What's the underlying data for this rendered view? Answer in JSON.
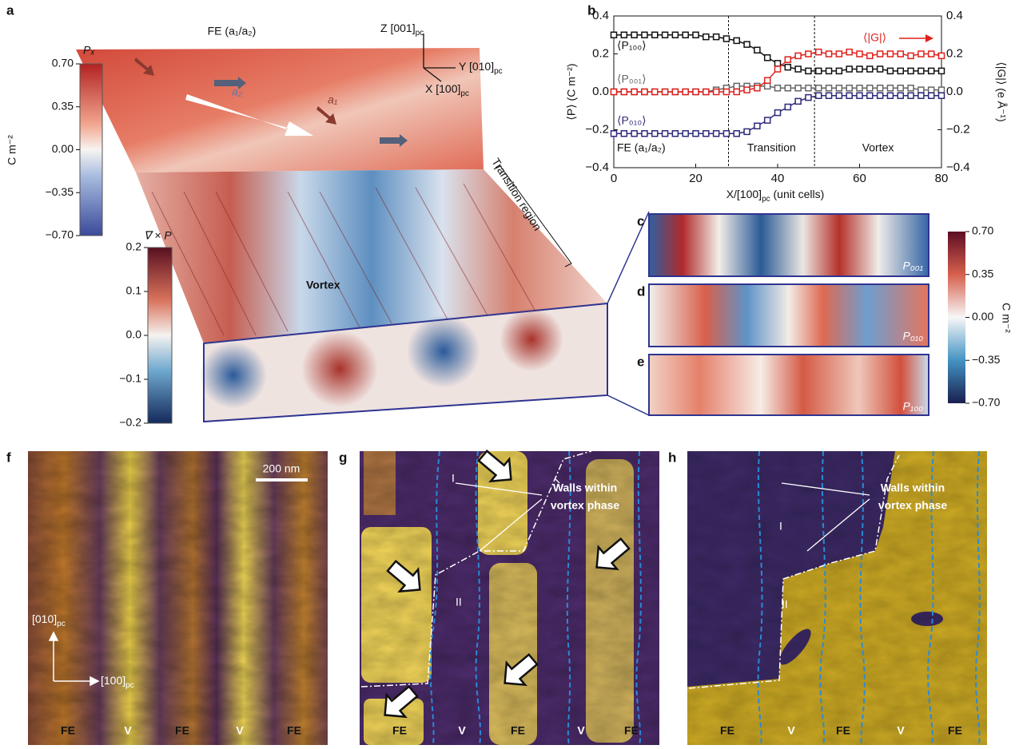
{
  "panel_a": {
    "label": "a",
    "fe_label": "FE (a₁/a₂)",
    "axis_z": {
      "text": "Z [001]",
      "sub": "pc"
    },
    "axis_y": {
      "text": "Y [010]",
      "sub": "pc"
    },
    "axis_x": {
      "text": "X [100]",
      "sub": "pc"
    },
    "arrow_a2": "a₂",
    "arrow_a1": "a₁",
    "transition": "Transition region",
    "vortex": "Vortex",
    "px_colorbar": {
      "title": "Pₓ",
      "unit": "C m⁻²",
      "range": [
        -0.7,
        0.7
      ],
      "ticks": [
        {
          "value": 0.7,
          "label": "0.70"
        },
        {
          "value": 0.35,
          "label": "0.35"
        },
        {
          "value": 0,
          "label": "0.00"
        },
        {
          "value": -0.35,
          "label": "−0.35"
        },
        {
          "value": -0.7,
          "label": "−0.70"
        }
      ]
    },
    "curl_colorbar": {
      "title": "∇ × P",
      "range": [
        -0.2,
        0.2
      ],
      "ticks": [
        0.2,
        0.1,
        {
          "value": 0,
          "label": "0.0"
        },
        {
          "value": -0.1,
          "label": "−0.1"
        },
        {
          "value": -0.2,
          "label": "−0.2"
        }
      ]
    }
  },
  "chart_data": {
    "type": "line",
    "label": "b",
    "xlabel": {
      "text": "X/[100]",
      "sub": "pc",
      "rest": " (unit cells)"
    },
    "ylabel": "⟨P⟩ (C m⁻²)",
    "y2label": "⟨|G|⟩ (e Å⁻¹)",
    "xlim": [
      0,
      80
    ],
    "xticks": [
      0,
      20,
      40,
      60,
      80
    ],
    "ylim": [
      -0.4,
      0.4
    ],
    "yticks": [
      {
        "value": -0.4,
        "label": "−0.4"
      },
      {
        "value": -0.2,
        "label": "−0.2"
      },
      {
        "value": 0,
        "label": "0.0"
      },
      0.2,
      0.4
    ],
    "y2lim": [
      -0.4,
      0.4
    ],
    "y2ticks": [
      {
        "value": -0.4,
        "label": "−0.4"
      },
      {
        "value": -0.2,
        "label": "−0.2"
      },
      {
        "value": 0,
        "label": "0.0"
      },
      0.2,
      0.4
    ],
    "boundaries": [
      28,
      49
    ],
    "regions": [
      "FE (a₁/a₂)",
      "Transition",
      "Vortex"
    ],
    "x": [
      0,
      2.5,
      5,
      7.5,
      10,
      12.5,
      15,
      17.5,
      20,
      22.5,
      25,
      27.5,
      30,
      32.5,
      35,
      37.5,
      40,
      42.5,
      45,
      47.5,
      50,
      52.5,
      55,
      57.5,
      60,
      62.5,
      65,
      67.5,
      70,
      72.5,
      75,
      77.5,
      80
    ],
    "series": [
      {
        "name": "⟨P₁₀₀⟩",
        "color": "#111111",
        "values": [
          0.3,
          0.3,
          0.3,
          0.3,
          0.3,
          0.3,
          0.3,
          0.3,
          0.3,
          0.29,
          0.29,
          0.28,
          0.27,
          0.25,
          0.22,
          0.18,
          0.15,
          0.13,
          0.12,
          0.11,
          0.11,
          0.11,
          0.11,
          0.12,
          0.12,
          0.12,
          0.12,
          0.11,
          0.11,
          0.11,
          0.11,
          0.11,
          0.11
        ]
      },
      {
        "name": "⟨P₀₀₁⟩",
        "color": "#666666",
        "values": [
          0,
          0,
          0,
          0,
          0,
          0,
          0,
          0,
          0,
          0,
          0.01,
          0.02,
          0.03,
          0.03,
          0.03,
          0.03,
          0.02,
          0.02,
          0.02,
          0.02,
          0.02,
          0.02,
          0.02,
          0.02,
          0.02,
          0.02,
          0.02,
          0.02,
          0.02,
          0.02,
          0.01,
          0.01,
          0.01
        ]
      },
      {
        "name": "⟨P₀₁₀⟩",
        "color": "#2c2a7a",
        "values": [
          -0.22,
          -0.22,
          -0.22,
          -0.22,
          -0.22,
          -0.22,
          -0.22,
          -0.22,
          -0.22,
          -0.22,
          -0.22,
          -0.22,
          -0.22,
          -0.21,
          -0.18,
          -0.15,
          -0.11,
          -0.08,
          -0.05,
          -0.03,
          -0.02,
          -0.02,
          -0.02,
          -0.02,
          -0.02,
          -0.02,
          -0.02,
          -0.02,
          -0.02,
          -0.02,
          -0.02,
          -0.02,
          -0.02
        ]
      },
      {
        "name": "⟨|G|⟩",
        "color": "#e0201c",
        "axis": "y2",
        "values": [
          0,
          0,
          0,
          0,
          0,
          0,
          0,
          0,
          0,
          0,
          0,
          0,
          0,
          0.01,
          0.02,
          0.06,
          0.12,
          0.17,
          0.19,
          0.2,
          0.21,
          0.2,
          0.2,
          0.21,
          0.2,
          0.19,
          0.2,
          0.2,
          0.2,
          0.19,
          0.2,
          0.2,
          0.19
        ]
      }
    ]
  },
  "panels_cde": {
    "labels": [
      "c",
      "d",
      "e"
    ],
    "components": [
      "P₀₀₁",
      "P₀₁₀",
      "P₁₀₀"
    ],
    "colorbar": {
      "unit": "C m⁻²",
      "range": [
        -0.7,
        0.7
      ],
      "ticks": [
        {
          "value": 0.7,
          "label": "0.70"
        },
        {
          "value": 0.35,
          "label": "0.35"
        },
        {
          "value": 0,
          "label": "0.00"
        },
        {
          "value": -0.35,
          "label": "−0.35"
        },
        {
          "value": -0.7,
          "label": "−0.70"
        }
      ]
    }
  },
  "panel_f": {
    "label": "f",
    "scale_bar": "200 nm",
    "dir_y": {
      "text": "[010]",
      "sub": "pc"
    },
    "dir_x": {
      "text": "[100]",
      "sub": "pc"
    },
    "phases": [
      "FE",
      "V",
      "FE",
      "V",
      "FE"
    ]
  },
  "panel_g": {
    "label": "g",
    "domain_I": "I",
    "domain_II": "II",
    "walls": [
      "Walls within",
      "vortex phase"
    ],
    "phases": [
      "FE",
      "V",
      "FE",
      "V",
      "FE"
    ]
  },
  "panel_h": {
    "label": "h",
    "domain_I": "I",
    "domain_II": "II",
    "walls": [
      "Walls within",
      "vortex phase"
    ],
    "phases": [
      "FE",
      "V",
      "FE",
      "V",
      "FE"
    ]
  }
}
